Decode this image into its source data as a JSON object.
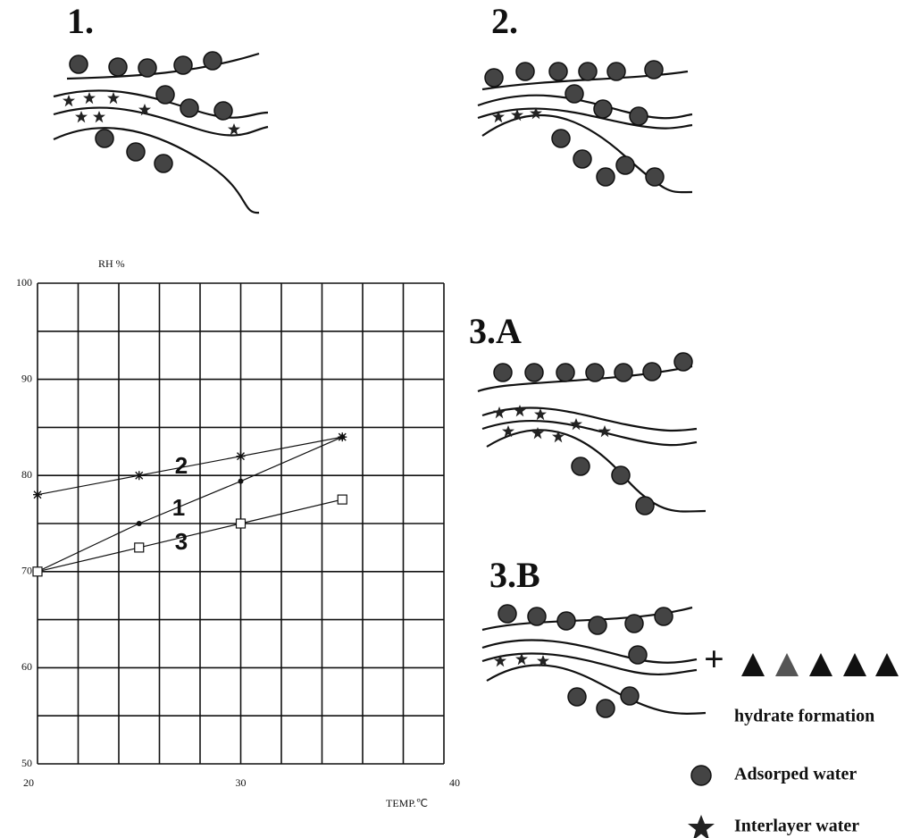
{
  "chart_data": {
    "type": "line",
    "ylabel": "RH %",
    "xlabel": "TEMP.℃",
    "x": [
      20,
      25,
      30,
      35
    ],
    "series": [
      {
        "name": "1",
        "color": "#111111",
        "marker": "dot",
        "values": [
          70,
          75,
          79.4,
          84
        ]
      },
      {
        "name": "2",
        "color": "#111111",
        "marker": "asterisk",
        "values": [
          78,
          80,
          82,
          84
        ]
      },
      {
        "name": "3",
        "color": "#111111",
        "marker": "square",
        "values": [
          70,
          72.5,
          75,
          77.5
        ]
      }
    ],
    "xlim": [
      20,
      40
    ],
    "ylim": [
      50,
      100
    ],
    "xticks": [
      20,
      30,
      40
    ],
    "yticks": [
      50,
      60,
      70,
      80,
      90,
      100
    ],
    "xgrid": [
      20,
      22,
      24,
      26,
      28,
      30,
      32,
      34,
      36,
      38,
      40
    ],
    "ygrid": [
      50,
      55,
      60,
      65,
      70,
      75,
      80,
      85,
      90,
      95,
      100
    ],
    "grid": true
  },
  "panels": {
    "p1": "1.",
    "p2": "2.",
    "p3a": "3.A",
    "p3b": "3.B"
  },
  "plus": "+",
  "legend": {
    "hydrate": "hydrate formation",
    "adsorbed": "Adsorped water",
    "interlayer": "Interlayer water"
  }
}
